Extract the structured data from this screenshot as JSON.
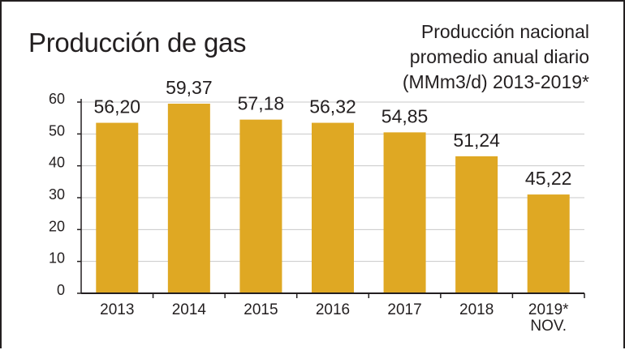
{
  "chart_data": {
    "type": "bar",
    "title": "Producción de gas",
    "subtitle_lines": [
      "Producción nacional",
      "promedio anual diario",
      "(MMm3/d) 2013-2019*"
    ],
    "categories": [
      [
        "2013"
      ],
      [
        "2014"
      ],
      [
        "2015"
      ],
      [
        "2016"
      ],
      [
        "2017"
      ],
      [
        "2018"
      ],
      [
        "2019*",
        "NOV."
      ]
    ],
    "values": [
      56.2,
      59.37,
      57.18,
      56.32,
      54.85,
      51.24,
      45.22
    ],
    "data_labels": [
      "56,20",
      "59,37",
      "57,18",
      "56,32",
      "54,85",
      "51,24",
      "45,22"
    ],
    "bar_heights": [
      53.5,
      59.5,
      54.5,
      53.5,
      50.5,
      43,
      31
    ],
    "yticks": [
      "0",
      "10",
      "20",
      "30",
      "40",
      "50",
      "60"
    ],
    "ylim": [
      0,
      60
    ],
    "grid": true,
    "bar_color": "#dfa823",
    "grid_color": "#c8c8c8",
    "text_color": "#231f20"
  }
}
